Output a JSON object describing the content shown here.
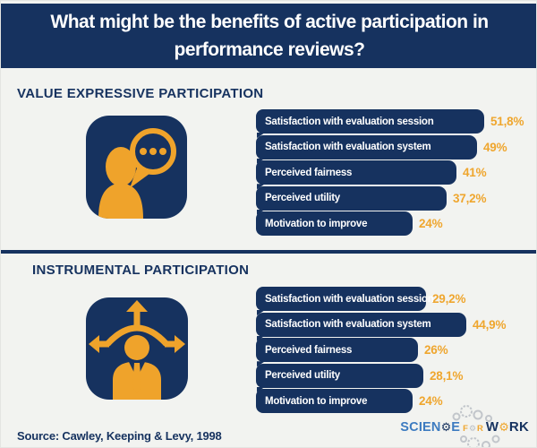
{
  "title": "What might be the benefits of active participation in performance reviews?",
  "banner": {
    "line1": "What might be the benefits of active participation in",
    "line2": "performance reviews?"
  },
  "chart_data": [
    {
      "type": "bar",
      "orientation": "horizontal",
      "title": "VALUE EXPRESSIVE PARTICIPATION",
      "icon": "person-speech-bubble-icon",
      "categories": [
        "Satisfaction with evaluation session",
        "Satisfaction with evaluation system",
        "Perceived fairness",
        "Perceived utility",
        "Motivation to improve"
      ],
      "values": [
        51.8,
        49,
        41,
        37.2,
        24
      ],
      "value_labels": [
        "51,8%",
        "49%",
        "41%",
        "37,2%",
        "24%"
      ],
      "unit": "%",
      "xlim": [
        0,
        100
      ],
      "grid": false,
      "legend": false
    },
    {
      "type": "bar",
      "orientation": "horizontal",
      "title": "INSTRUMENTAL PARTICIPATION",
      "icon": "person-choices-arrows-icon",
      "categories": [
        "Satisfaction with evaluation session",
        "Satisfaction with evaluation system",
        "Perceived fairness",
        "Perceived utility",
        "Motivation to improve"
      ],
      "values": [
        29.2,
        44.9,
        26,
        28.1,
        24
      ],
      "value_labels": [
        "29,2%",
        "44,9%",
        "26%",
        "28,1%",
        "24%"
      ],
      "unit": "%",
      "xlim": [
        0,
        100
      ],
      "grid": false,
      "legend": false
    }
  ],
  "source": "Source: Cawley, Keeping & Levy, 1998",
  "logo": {
    "scien": "SCIEN",
    "e": "E",
    "f": "F",
    "r": "R",
    "w": "W",
    "rk": "RK"
  },
  "colors": {
    "navy": "#16325F",
    "gold": "#EFA62E",
    "icon_gold": "#EFA32B",
    "logo_blue": "#3D7BC0",
    "gear_gray": "#B9BEC4",
    "background": "#F2F3F0",
    "bar_text": "#FFFFFF",
    "banner_text": "#FFFFFF"
  }
}
